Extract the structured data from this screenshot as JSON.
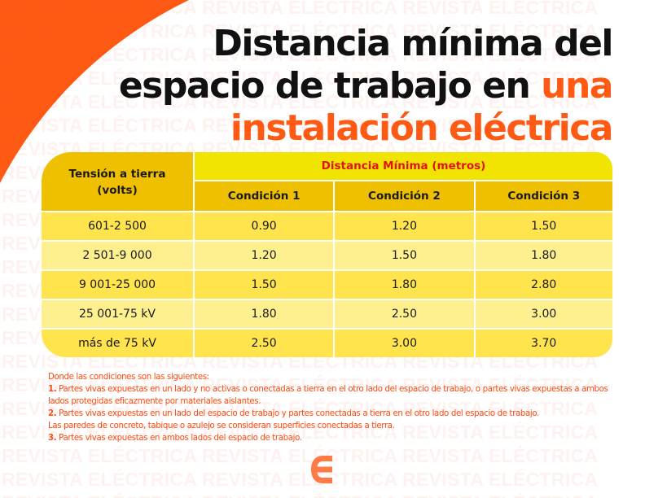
{
  "watermark": {
    "text": "REVISTA ELÉCTRICA REVISTA ELÉCTRICA REVISTA ELÉCTRICA",
    "rows": 22
  },
  "colors": {
    "orange": "#ff5a14",
    "header_gold": "#efc000",
    "header_yellow": "#f1e400",
    "header_red_text": "#e0141b",
    "row_light": "#fff08f",
    "row_dark": "#ffe44e"
  },
  "title": {
    "line1": "Distancia mínima del",
    "line2_black": "espacio de trabajo en ",
    "line2_accent": "una",
    "line3_accent": "instalación eléctrica"
  },
  "table": {
    "header_tension_line1": "Tensión a tierra",
    "header_tension_line2": "(volts)",
    "header_distance": "Distancia Mínima (metros)",
    "conditions": [
      "Condición 1",
      "Condición 2",
      "Condición 3"
    ],
    "rows": [
      {
        "tension": "601-2 500",
        "c1": "0.90",
        "c2": "1.20",
        "c3": "1.50"
      },
      {
        "tension": "2 501-9 000",
        "c1": "1.20",
        "c2": "1.50",
        "c3": "1.80"
      },
      {
        "tension": "9 001-25 000",
        "c1": "1.50",
        "c2": "1.80",
        "c3": "2.80"
      },
      {
        "tension": "25 001-75 kV",
        "c1": "1.80",
        "c2": "2.50",
        "c3": "3.00"
      },
      {
        "tension": "más de 75 kV",
        "c1": "2.50",
        "c2": "3.00",
        "c3": "3.70"
      }
    ]
  },
  "notes": {
    "intro": "Donde las condiciones son las siguientes:",
    "n1_num": "1.",
    "n1_text": " Partes vivas expuestas en un lado y no activas o conectadas a tierra en el otro lado del espacio de trabajo, o partes vivas expuestas a ambos lados protegidas eficazmente por materiales aislantes.",
    "n2_num": "2.",
    "n2_text": " Partes vivas expuestas en un lado del espacio de trabajo y partes conectadas a tierra en el otro lado del espacio de trabajo.",
    "n2_extra": "Las paredes de concreto, tabique o azulejo se consideran superficies conectadas a tierra.",
    "n3_num": "3.",
    "n3_text": " Partes vivas expuestas en ambos lados del espacio de trabajo."
  },
  "logo": {
    "icon": "revista-electrica-e-logo"
  }
}
